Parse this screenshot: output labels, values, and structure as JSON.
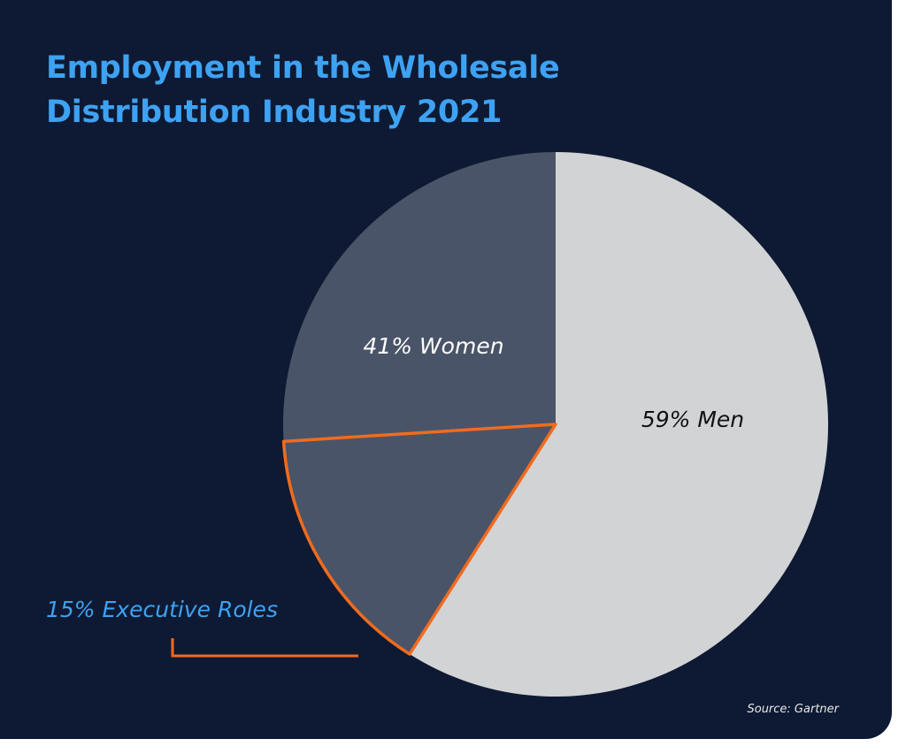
{
  "chart_data": {
    "type": "pie",
    "title": "Employment in the Wholesale Distribution Industry 2021",
    "slices": [
      {
        "label": "59% Men",
        "value": 59,
        "color": "#d2d3d5"
      },
      {
        "label": "41% Women",
        "value": 41,
        "color": "#4a5468"
      }
    ],
    "highlight": {
      "label": "15% Executive Roles",
      "value": 15,
      "within": "41% Women",
      "outline_color": "#f26b1d"
    },
    "source": "Source: Gartner"
  },
  "colors": {
    "background": "#0e1a33",
    "title": "#3ea2f2"
  }
}
